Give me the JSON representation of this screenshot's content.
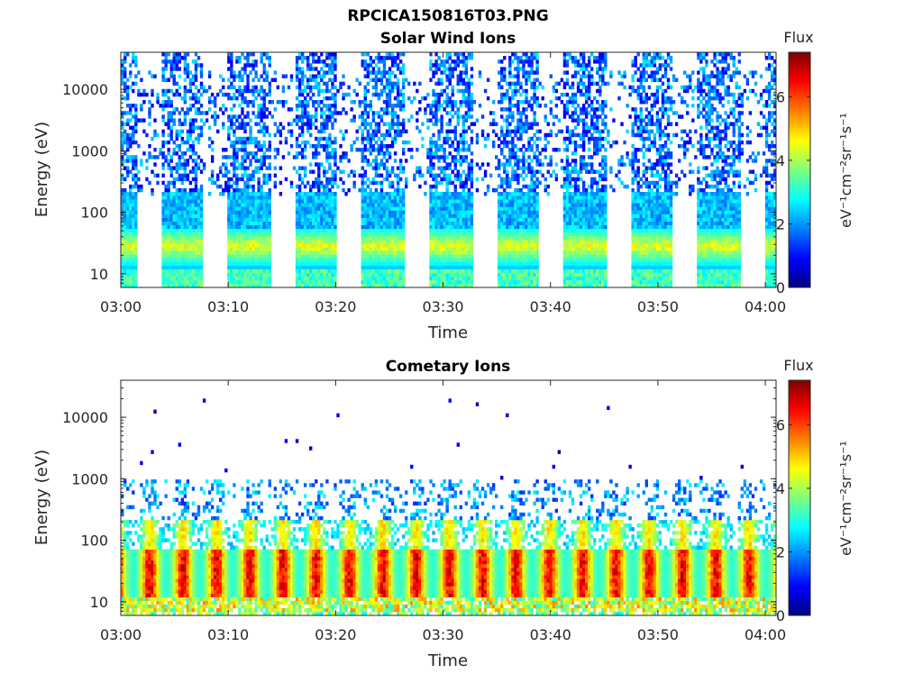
{
  "figure": {
    "main_title": "RPCICA150816T03.PNG"
  },
  "colormap": "jet",
  "colors": {
    "axis": "#262626",
    "background": "#ffffff"
  },
  "chart_data": [
    {
      "type": "heatmap",
      "title": "Solar Wind Ions",
      "xlabel": "Time",
      "ylabel": "Energy (eV)",
      "xlim": [
        "03:00",
        "04:01"
      ],
      "ylim": [
        6,
        40000
      ],
      "yscale": "log",
      "xticks": [
        "03:00",
        "03:10",
        "03:20",
        "03:30",
        "03:40",
        "03:50",
        "04:00"
      ],
      "yticks": [
        10,
        100,
        1000,
        10000
      ],
      "ytick_labels": [
        "10",
        "100",
        "1000",
        "10000"
      ],
      "colorbar": {
        "title": "Flux",
        "label": "eV⁻¹cm⁻²sr⁻¹s⁻¹",
        "range": [
          0,
          7.4
        ],
        "ticks": [
          0,
          2,
          4,
          6
        ],
        "tick_labels": [
          "0",
          "2",
          "4",
          "6"
        ]
      },
      "pattern": {
        "description_scan_centers_min": [
          6,
          12.2,
          18.6,
          24.8,
          31,
          37.4,
          43.6,
          50,
          56.2
        ],
        "low_energy_peak_eV": [
          20,
          40
        ],
        "high_energy_flux_range": [
          0.5,
          2.5
        ],
        "peak_flux": 5
      },
      "grid": false
    },
    {
      "type": "heatmap",
      "title": "Cometary Ions",
      "xlabel": "Time",
      "ylabel": "Energy (eV)",
      "xlim": [
        "03:00",
        "04:01"
      ],
      "ylim": [
        6,
        40000
      ],
      "yscale": "log",
      "xticks": [
        "03:00",
        "03:10",
        "03:20",
        "03:30",
        "03:40",
        "03:50",
        "04:00"
      ],
      "yticks": [
        10,
        100,
        1000,
        10000
      ],
      "ytick_labels": [
        "10",
        "100",
        "1000",
        "10000"
      ],
      "colorbar": {
        "title": "Flux",
        "label": "eV⁻¹cm⁻²sr⁻¹s⁻¹",
        "range": [
          0,
          7.4
        ],
        "ticks": [
          0,
          2,
          4,
          6
        ],
        "tick_labels": [
          "0",
          "2",
          "4",
          "6"
        ]
      },
      "pattern": {
        "burst_period_min": 3.1,
        "core_energy_eV": [
          15,
          60
        ],
        "peak_flux": 7.2
      },
      "grid": false
    }
  ]
}
